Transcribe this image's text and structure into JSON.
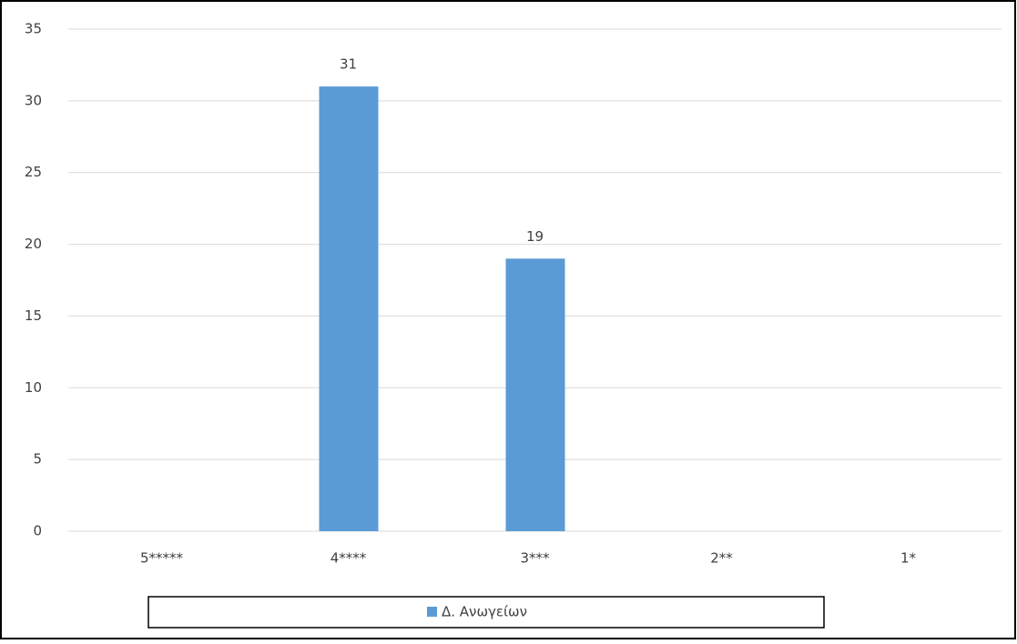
{
  "chart_data": {
    "type": "bar",
    "categories": [
      "5*****",
      "4****",
      "3***",
      "2**",
      "1*"
    ],
    "series": [
      {
        "name": "Δ. Ανωγείων",
        "color": "#5b9bd5",
        "values": [
          null,
          31,
          19,
          null,
          null
        ]
      }
    ],
    "ylim": [
      0,
      35
    ],
    "yticks": [
      0,
      5,
      10,
      15,
      20,
      25,
      30,
      35
    ],
    "grid": true,
    "legend": "bottom"
  }
}
